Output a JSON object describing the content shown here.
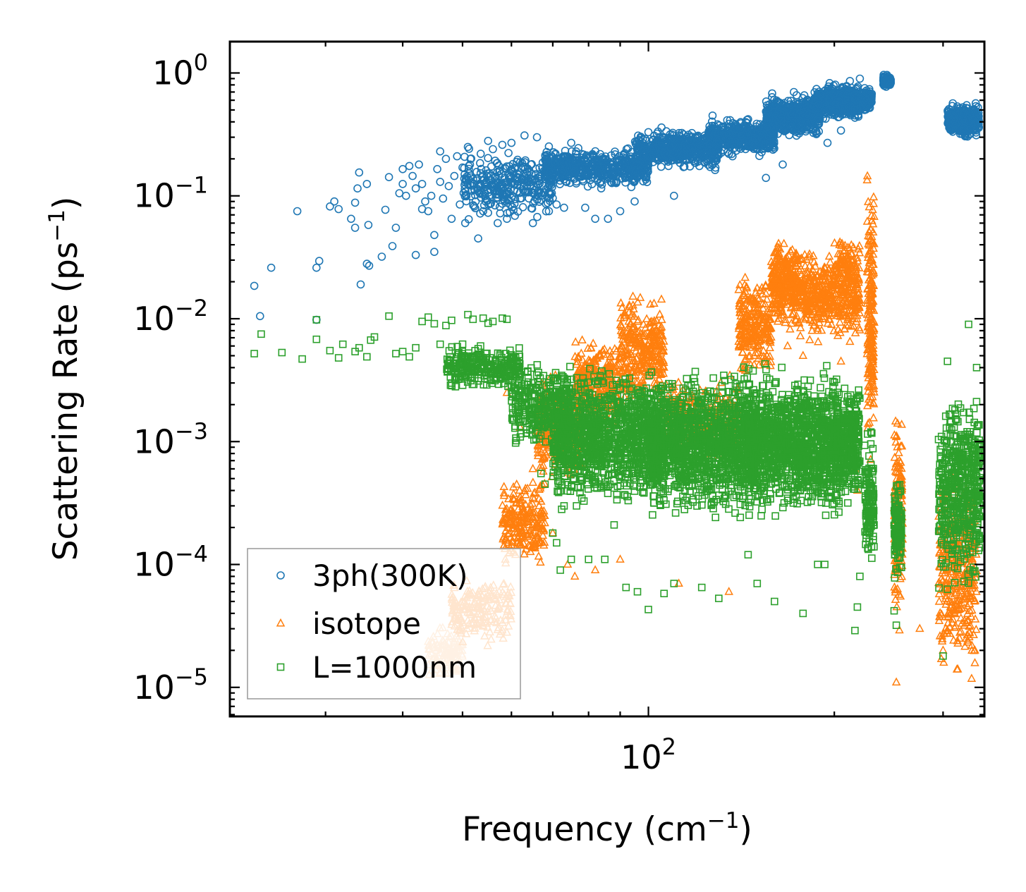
{
  "chart_data": {
    "type": "scatter",
    "title": "",
    "xlabel": "Frequency (cm",
    "xlabel_exponent": "−1",
    "xlabel_suffix": ")",
    "ylabel": "Scattering Rate (ps",
    "ylabel_exponent": "−1",
    "ylabel_suffix": ")",
    "x_scale": "log",
    "y_scale": "log",
    "xlim": [
      21,
      350
    ],
    "ylim": [
      5.8e-06,
      1.8
    ],
    "x_major_ticks": [
      {
        "value": 100,
        "base": "10",
        "exp": "2"
      }
    ],
    "y_major_ticks": [
      {
        "value": 1,
        "base": "10",
        "exp": "0"
      },
      {
        "value": 0.1,
        "base": "10",
        "exp": "−1"
      },
      {
        "value": 0.01,
        "base": "10",
        "exp": "−2"
      },
      {
        "value": 0.001,
        "base": "10",
        "exp": "−3"
      },
      {
        "value": 0.0001,
        "base": "10",
        "exp": "−4"
      },
      {
        "value": 1e-05,
        "base": "10",
        "exp": "−5"
      }
    ],
    "legend_position": "lower-left",
    "grid": false,
    "series": [
      {
        "name": "3ph(300K)",
        "marker": "circle",
        "color": "#1f77b4",
        "points": [
          [
            23,
            0.0185
          ],
          [
            23.5,
            0.0105
          ],
          [
            24.5,
            0.026
          ],
          [
            27,
            0.075
          ],
          [
            29,
            0.026
          ],
          [
            29.3,
            0.0295
          ],
          [
            29,
            0.0098
          ],
          [
            30.5,
            0.082
          ],
          [
            31,
            0.09
          ],
          [
            31.5,
            0.078
          ],
          [
            33,
            0.065
          ],
          [
            33.5,
            0.088
          ],
          [
            33.5,
            0.055
          ],
          [
            33.8,
            0.115
          ],
          [
            34,
            0.155
          ],
          [
            34.2,
            0.019
          ],
          [
            35,
            0.028
          ],
          [
            35.3,
            0.027
          ],
          [
            35,
            0.125
          ],
          [
            35.2,
            0.058
          ],
          [
            37,
            0.032
          ],
          [
            37.5,
            0.077
          ],
          [
            38,
            0.142
          ],
          [
            38.5,
            0.039
          ],
          [
            39,
            0.055
          ],
          [
            39.5,
            0.105
          ],
          [
            40,
            0.125
          ],
          [
            40,
            0.165
          ],
          [
            40.5,
            0.1
          ],
          [
            41,
            0.175
          ],
          [
            41.5,
            0.145
          ],
          [
            42,
            0.033
          ],
          [
            42,
            0.115
          ],
          [
            42.5,
            0.18
          ],
          [
            43,
            0.078
          ],
          [
            43,
            0.125
          ],
          [
            43.5,
            0.09
          ],
          [
            44,
            0.075
          ],
          [
            44.5,
            0.1
          ],
          [
            45,
            0.048
          ],
          [
            45,
            0.035
          ],
          [
            45.5,
            0.165
          ],
          [
            46,
            0.23
          ],
          [
            46,
            0.13
          ],
          [
            46.5,
            0.095
          ],
          [
            47,
            0.2
          ],
          [
            47.5,
            0.12
          ],
          [
            48,
            0.065
          ],
          [
            48.5,
            0.145
          ],
          [
            49,
            0.21
          ],
          [
            49.5,
            0.085
          ],
          [
            50,
            0.17
          ],
          [
            50.5,
            0.06
          ],
          [
            51,
            0.25
          ],
          [
            51.5,
            0.2
          ],
          [
            52,
            0.125
          ],
          [
            52.5,
            0.09
          ],
          [
            53,
            0.045
          ],
          [
            53.5,
            0.22
          ],
          [
            54,
            0.075
          ],
          [
            55,
            0.28
          ],
          [
            56,
            0.24
          ],
          [
            57,
            0.06
          ],
          [
            58,
            0.26
          ],
          [
            59,
            0.065
          ],
          [
            60,
            0.27
          ],
          [
            62,
            0.095
          ],
          [
            63,
            0.31
          ],
          [
            65,
            0.06
          ],
          [
            66,
            0.3
          ],
          [
            69,
            0.075
          ],
          [
            71,
            0.085
          ],
          [
            73,
            0.08
          ],
          [
            75,
            0.27
          ],
          [
            79,
            0.08
          ],
          [
            82,
            0.065
          ],
          [
            86,
            0.065
          ],
          [
            90,
            0.075
          ],
          [
            95,
            0.09
          ],
          [
            100,
            0.33
          ],
          [
            105,
            0.36
          ],
          [
            110,
            0.1
          ],
          [
            117,
            0.28
          ],
          [
            127,
            0.45
          ],
          [
            135,
            0.22
          ],
          [
            145,
            0.42
          ],
          [
            155,
            0.14
          ],
          [
            165,
            0.18
          ],
          [
            172,
            0.7
          ],
          [
            185,
            0.6
          ],
          [
            195,
            0.27
          ],
          [
            205,
            0.34
          ],
          [
            212,
            0.86
          ],
          [
            220,
            0.9
          ],
          [
            228,
            0.55
          ]
        ],
        "bands": [
          {
            "x": [
              50,
              70
            ],
            "y": [
              0.06,
              0.25
            ],
            "n": 320,
            "seed": 11
          },
          {
            "x": [
              68,
              100
            ],
            "y": [
              0.11,
              0.26
            ],
            "n": 520,
            "seed": 12
          },
          {
            "x": [
              95,
              130
            ],
            "y": [
              0.16,
              0.36
            ],
            "n": 520,
            "seed": 13
          },
          {
            "x": [
              125,
              160
            ],
            "y": [
              0.2,
              0.45
            ],
            "n": 480,
            "seed": 14
          },
          {
            "x": [
              155,
              190
            ],
            "y": [
              0.28,
              0.72
            ],
            "n": 500,
            "seed": 15
          },
          {
            "x": [
              185,
              220
            ],
            "y": [
              0.4,
              0.85
            ],
            "n": 500,
            "seed": 16
          },
          {
            "x": [
              215,
              230
            ],
            "y": [
              0.45,
              0.8
            ],
            "n": 160,
            "seed": 17
          },
          {
            "x": [
              240,
              247
            ],
            "y": [
              0.75,
              1.0
            ],
            "n": 60,
            "seed": 18
          },
          {
            "x": [
              305,
              343
            ],
            "y": [
              0.28,
              0.6
            ],
            "n": 420,
            "seed": 19
          }
        ]
      },
      {
        "name": "isotope",
        "marker": "triangle",
        "color": "#ff7f0e",
        "points": [
          [
            59,
            0.0025
          ],
          [
            62,
            0.0013
          ],
          [
            65,
            0.0006
          ],
          [
            70,
            0.00018
          ],
          [
            74,
            0.0001
          ],
          [
            76,
            8e-05
          ],
          [
            82,
            9e-05
          ],
          [
            90,
            0.00011
          ],
          [
            112,
            7e-05
          ],
          [
            135,
            6e-05
          ],
          [
            158,
            0.0012
          ],
          [
            168,
            0.006
          ],
          [
            178,
            0.005
          ],
          [
            188,
            0.008
          ],
          [
            205,
            0.0045
          ],
          [
            212,
            0.0065
          ],
          [
            216,
            0.0006
          ],
          [
            218,
            0.0004
          ],
          [
            252,
            1.1e-05
          ],
          [
            275,
            3e-05
          ],
          [
            300,
            2e-05
          ]
        ],
        "bands": [
          {
            "x": [
              44,
              50
            ],
            "y": [
              1.1e-05,
              3.5e-05
            ],
            "n": 120,
            "seed": 21,
            "color": "#ffbb78"
          },
          {
            "x": [
              48,
              60
            ],
            "y": [
              2e-05,
              9e-05
            ],
            "n": 200,
            "seed": 22
          },
          {
            "x": [
              58,
              68
            ],
            "y": [
              8e-05,
              0.0006
            ],
            "n": 220,
            "seed": 23
          },
          {
            "x": [
              66,
              78
            ],
            "y": [
              0.0004,
              0.004
            ],
            "n": 260,
            "seed": 24
          },
          {
            "x": [
              76,
              90
            ],
            "y": [
              0.001,
              0.008
            ],
            "n": 280,
            "seed": 25
          },
          {
            "x": [
              90,
              106
            ],
            "y": [
              0.0015,
              0.02
            ],
            "n": 320,
            "seed": 26
          },
          {
            "x": [
              106,
              140
            ],
            "y": [
              0.0006,
              0.004
            ],
            "n": 260,
            "seed": 27
          },
          {
            "x": [
              140,
              158
            ],
            "y": [
              0.003,
              0.025
            ],
            "n": 240,
            "seed": 28
          },
          {
            "x": [
              158,
              175
            ],
            "y": [
              0.008,
              0.05
            ],
            "n": 300,
            "seed": 29
          },
          {
            "x": [
              175,
              200
            ],
            "y": [
              0.006,
              0.04
            ],
            "n": 280,
            "seed": 30
          },
          {
            "x": [
              200,
              220
            ],
            "y": [
              0.006,
              0.06
            ],
            "n": 260,
            "seed": 31
          },
          {
            "x": [
              226,
              232
            ],
            "y": [
              0.0005,
              0.28
            ],
            "n": 200,
            "seed": 32
          },
          {
            "x": [
              250,
              258
            ],
            "y": [
              2e-05,
              0.003
            ],
            "n": 160,
            "seed": 33
          },
          {
            "x": [
              295,
              340
            ],
            "y": [
              1e-05,
              0.0008
            ],
            "n": 360,
            "seed": 34
          }
        ]
      },
      {
        "name": "L=1000nm",
        "marker": "square",
        "color": "#2ca02c",
        "points": [
          [
            23,
            0.0052
          ],
          [
            23.6,
            0.0075
          ],
          [
            25.5,
            0.0053
          ],
          [
            27.5,
            0.0047
          ],
          [
            29,
            0.0068
          ],
          [
            29,
            0.0098
          ],
          [
            30.5,
            0.0055
          ],
          [
            31.5,
            0.0048
          ],
          [
            32,
            0.0062
          ],
          [
            33.5,
            0.0054
          ],
          [
            34,
            0.0058
          ],
          [
            35,
            0.0049
          ],
          [
            35.5,
            0.0067
          ],
          [
            36,
            0.0071
          ],
          [
            38,
            0.0105
          ],
          [
            39,
            0.0052
          ],
          [
            40,
            0.0054
          ],
          [
            41,
            0.0049
          ],
          [
            42,
            0.0058
          ],
          [
            43,
            0.0095
          ],
          [
            44,
            0.0103
          ],
          [
            45,
            0.0091
          ],
          [
            46,
            0.0062
          ],
          [
            47,
            0.0088
          ],
          [
            48,
            0.0097
          ],
          [
            49,
            0.0049
          ],
          [
            50,
            0.0045
          ],
          [
            51,
            0.0108
          ],
          [
            52,
            0.0099
          ],
          [
            53,
            0.0057
          ],
          [
            54,
            0.0101
          ],
          [
            55,
            0.0092
          ],
          [
            56,
            0.0095
          ],
          [
            57,
            0.0042
          ],
          [
            58,
            0.0101
          ],
          [
            59,
            0.0099
          ],
          [
            60,
            0.0028
          ],
          [
            61,
            0.0021
          ],
          [
            62,
            0.0035
          ],
          [
            63,
            0.0018
          ],
          [
            65,
            0.0014
          ],
          [
            67,
            0.00055
          ],
          [
            68,
            0.00045
          ],
          [
            70,
            0.00018
          ],
          [
            71,
            0.00015
          ],
          [
            72,
            9e-05
          ],
          [
            73,
            0.0003
          ],
          [
            75,
            0.00011
          ],
          [
            80,
            0.00011
          ],
          [
            85,
            0.00011
          ],
          [
            88,
            0.00021
          ],
          [
            92,
            6.5e-05
          ],
          [
            96,
            6e-05
          ],
          [
            100,
            4.3e-05
          ],
          [
            106,
            5.8e-05
          ],
          [
            110,
            7e-05
          ],
          [
            122,
            6.5e-05
          ],
          [
            130,
            5.3e-05
          ],
          [
            145,
            0.00012
          ],
          [
            150,
            7e-05
          ],
          [
            160,
            5e-05
          ],
          [
            178,
            4e-05
          ],
          [
            188,
            0.0001
          ],
          [
            193,
            0.0001
          ],
          [
            216,
            2.9e-05
          ],
          [
            218,
            4.5e-05
          ],
          [
            220,
            8e-05
          ],
          [
            250,
            4.2e-05
          ],
          [
            252,
            3.2e-05
          ],
          [
            300,
            1.8e-05
          ],
          [
            305,
            0.0045
          ],
          [
            330,
            0.009
          ],
          [
            340,
            0.004
          ]
        ],
        "bands": [
          {
            "x": [
              47,
              62
            ],
            "y": [
              0.0025,
              0.0065
            ],
            "n": 260,
            "seed": 41
          },
          {
            "x": [
              60,
              75
            ],
            "y": [
              0.0007,
              0.005
            ],
            "n": 320,
            "seed": 42
          },
          {
            "x": [
              70,
              105
            ],
            "y": [
              0.00025,
              0.0045
            ],
            "n": 1200,
            "seed": 43
          },
          {
            "x": [
              100,
              150
            ],
            "y": [
              0.0002,
              0.0045
            ],
            "n": 1300,
            "seed": 44
          },
          {
            "x": [
              145,
              205
            ],
            "y": [
              0.0002,
              0.0045
            ],
            "n": 1300,
            "seed": 45
          },
          {
            "x": [
              200,
              220
            ],
            "y": [
              0.00025,
              0.0035
            ],
            "n": 320,
            "seed": 46
          },
          {
            "x": [
              224,
              232
            ],
            "y": [
              8e-05,
              0.0015
            ],
            "n": 140,
            "seed": 47
          },
          {
            "x": [
              250,
              257
            ],
            "y": [
              6e-05,
              0.0007
            ],
            "n": 120,
            "seed": 48
          },
          {
            "x": [
              295,
              345
            ],
            "y": [
              5e-05,
              0.003
            ],
            "n": 520,
            "seed": 49
          }
        ]
      }
    ]
  }
}
